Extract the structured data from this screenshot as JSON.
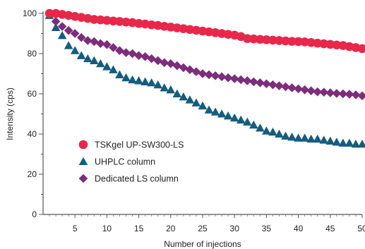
{
  "chart_data": {
    "type": "scatter",
    "title": "",
    "xlabel": "Number of injections",
    "ylabel": "Intensity (cps)",
    "xlim": [
      0,
      50
    ],
    "ylim": [
      0,
      100
    ],
    "x_ticks": [
      5,
      10,
      15,
      20,
      25,
      30,
      35,
      40,
      45,
      50
    ],
    "y_ticks": [
      0,
      20,
      40,
      60,
      80,
      100
    ],
    "x_tick_labels": [
      "5",
      "10",
      "15",
      "20",
      "25",
      "30",
      "35",
      "40",
      "45",
      "50"
    ],
    "y_tick_labels": [
      "0",
      "20",
      "40",
      "60",
      "80",
      "100"
    ],
    "grid": false,
    "legend_position": "center-left",
    "x": [
      1,
      2,
      3,
      4,
      5,
      6,
      7,
      8,
      9,
      10,
      11,
      12,
      13,
      14,
      15,
      16,
      17,
      18,
      19,
      20,
      21,
      22,
      23,
      24,
      25,
      26,
      27,
      28,
      29,
      30,
      31,
      32,
      33,
      34,
      35,
      36,
      37,
      38,
      39,
      40,
      41,
      42,
      43,
      44,
      45,
      46,
      47,
      48,
      49,
      50
    ],
    "series": [
      {
        "name": "TSKgel UP-SW300-LS",
        "color": "#e8274b",
        "marker": "circle",
        "values": [
          100,
          100,
          99.5,
          99,
          98.5,
          98,
          97.5,
          97,
          96.8,
          96.5,
          96.2,
          96,
          95.7,
          95.4,
          95,
          94.7,
          94.3,
          94,
          93.6,
          93.2,
          92.8,
          92.4,
          92,
          91.6,
          91.2,
          90.8,
          90.4,
          90,
          89.6,
          89.2,
          88.5,
          87.5,
          87.3,
          87.1,
          86.9,
          86.7,
          86.5,
          86.3,
          86.1,
          86,
          85.8,
          85.5,
          85.2,
          84.9,
          84.6,
          84.3,
          84,
          83.5,
          83,
          82.5
        ]
      },
      {
        "name": "UHPLC column",
        "color": "#165c7d",
        "marker": "triangle",
        "values": [
          99,
          93,
          89,
          84,
          81.5,
          79,
          77.5,
          76.5,
          75,
          73.5,
          72,
          69.5,
          68,
          67,
          66.5,
          66,
          65.5,
          64.5,
          63,
          62,
          60,
          58.5,
          57,
          55.5,
          54,
          52,
          51,
          50,
          49,
          48,
          47,
          46,
          44.5,
          43,
          41.5,
          41,
          40,
          39,
          38.5,
          38,
          38,
          37.5,
          37.5,
          37,
          36.5,
          36,
          35.5,
          35.5,
          35,
          35
        ]
      },
      {
        "name": "Dedicated LS column",
        "color": "#7c2d7c",
        "marker": "diamond",
        "values": [
          100,
          96,
          93.5,
          91.5,
          90,
          88,
          86.5,
          86,
          85,
          84.5,
          83,
          81.5,
          80.5,
          80,
          79,
          78.5,
          77.5,
          76.5,
          75.5,
          75,
          74,
          73,
          72,
          71,
          70,
          69.5,
          69,
          68.5,
          68,
          67.5,
          67,
          66.5,
          66,
          65.5,
          65,
          64.5,
          64,
          63.5,
          63,
          62.5,
          62,
          61.5,
          61,
          60.8,
          60.5,
          60.2,
          60,
          59.8,
          59.5,
          59
        ]
      }
    ]
  }
}
